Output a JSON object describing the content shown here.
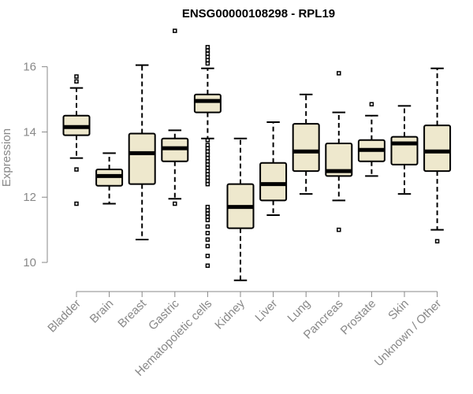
{
  "chart_data": {
    "type": "boxplot",
    "title": "ENSG00000108298 - RPL19",
    "xlabel": "",
    "ylabel": "Expression",
    "ylim": [
      9.3,
      17.2
    ],
    "yticks": [
      10,
      12,
      14,
      16
    ],
    "box_color": "#EEE8CD",
    "categories": [
      "Bladder",
      "Brain",
      "Breast",
      "Gastric",
      "Hematopoietic cells",
      "Kidney",
      "Liver",
      "Lung",
      "Pancreas",
      "Prostate",
      "Skin",
      "Unknown / Other"
    ],
    "boxes": [
      {
        "category": "Bladder",
        "whisker_low": 13.2,
        "q1": 13.9,
        "median": 14.15,
        "q3": 14.5,
        "whisker_high": 15.35,
        "outliers": [
          15.7,
          15.55,
          12.85,
          11.8
        ]
      },
      {
        "category": "Brain",
        "whisker_low": 11.8,
        "q1": 12.35,
        "median": 12.65,
        "q3": 12.85,
        "whisker_high": 13.35,
        "outliers": []
      },
      {
        "category": "Breast",
        "whisker_low": 10.7,
        "q1": 12.4,
        "median": 13.35,
        "q3": 13.95,
        "whisker_high": 16.05,
        "outliers": []
      },
      {
        "category": "Gastric",
        "whisker_low": 11.95,
        "q1": 13.1,
        "median": 13.5,
        "q3": 13.8,
        "whisker_high": 14.05,
        "outliers": [
          17.1,
          11.8
        ]
      },
      {
        "category": "Hematopoietic cells",
        "whisker_low": 13.8,
        "q1": 14.6,
        "median": 14.95,
        "q3": 15.15,
        "whisker_high": 15.95,
        "outliers": [
          16.6,
          16.5,
          16.4,
          16.3,
          16.2,
          16.1,
          13.75,
          13.6,
          13.5,
          13.4,
          13.3,
          13.2,
          13.1,
          13.0,
          12.9,
          12.8,
          12.7,
          12.6,
          12.5,
          12.4,
          11.7,
          11.6,
          11.5,
          11.4,
          11.3,
          11.1,
          10.9,
          10.7,
          10.5,
          10.2,
          9.9
        ]
      },
      {
        "category": "Kidney",
        "whisker_low": 9.45,
        "q1": 11.05,
        "median": 11.7,
        "q3": 12.4,
        "whisker_high": 13.8,
        "outliers": []
      },
      {
        "category": "Liver",
        "whisker_low": 11.45,
        "q1": 11.9,
        "median": 12.4,
        "q3": 13.05,
        "whisker_high": 14.3,
        "outliers": []
      },
      {
        "category": "Lung",
        "whisker_low": 12.1,
        "q1": 12.8,
        "median": 13.4,
        "q3": 14.25,
        "whisker_high": 15.15,
        "outliers": []
      },
      {
        "category": "Pancreas",
        "whisker_low": 11.9,
        "q1": 12.65,
        "median": 12.8,
        "q3": 13.65,
        "whisker_high": 14.6,
        "outliers": [
          15.8,
          11.0
        ]
      },
      {
        "category": "Prostate",
        "whisker_low": 12.65,
        "q1": 13.1,
        "median": 13.45,
        "q3": 13.75,
        "whisker_high": 14.5,
        "outliers": [
          14.85
        ]
      },
      {
        "category": "Skin",
        "whisker_low": 12.1,
        "q1": 13.0,
        "median": 13.65,
        "q3": 13.85,
        "whisker_high": 14.8,
        "outliers": []
      },
      {
        "category": "Unknown / Other",
        "whisker_low": 11.0,
        "q1": 12.8,
        "median": 13.4,
        "q3": 14.2,
        "whisker_high": 15.95,
        "outliers": [
          10.65
        ]
      }
    ]
  }
}
